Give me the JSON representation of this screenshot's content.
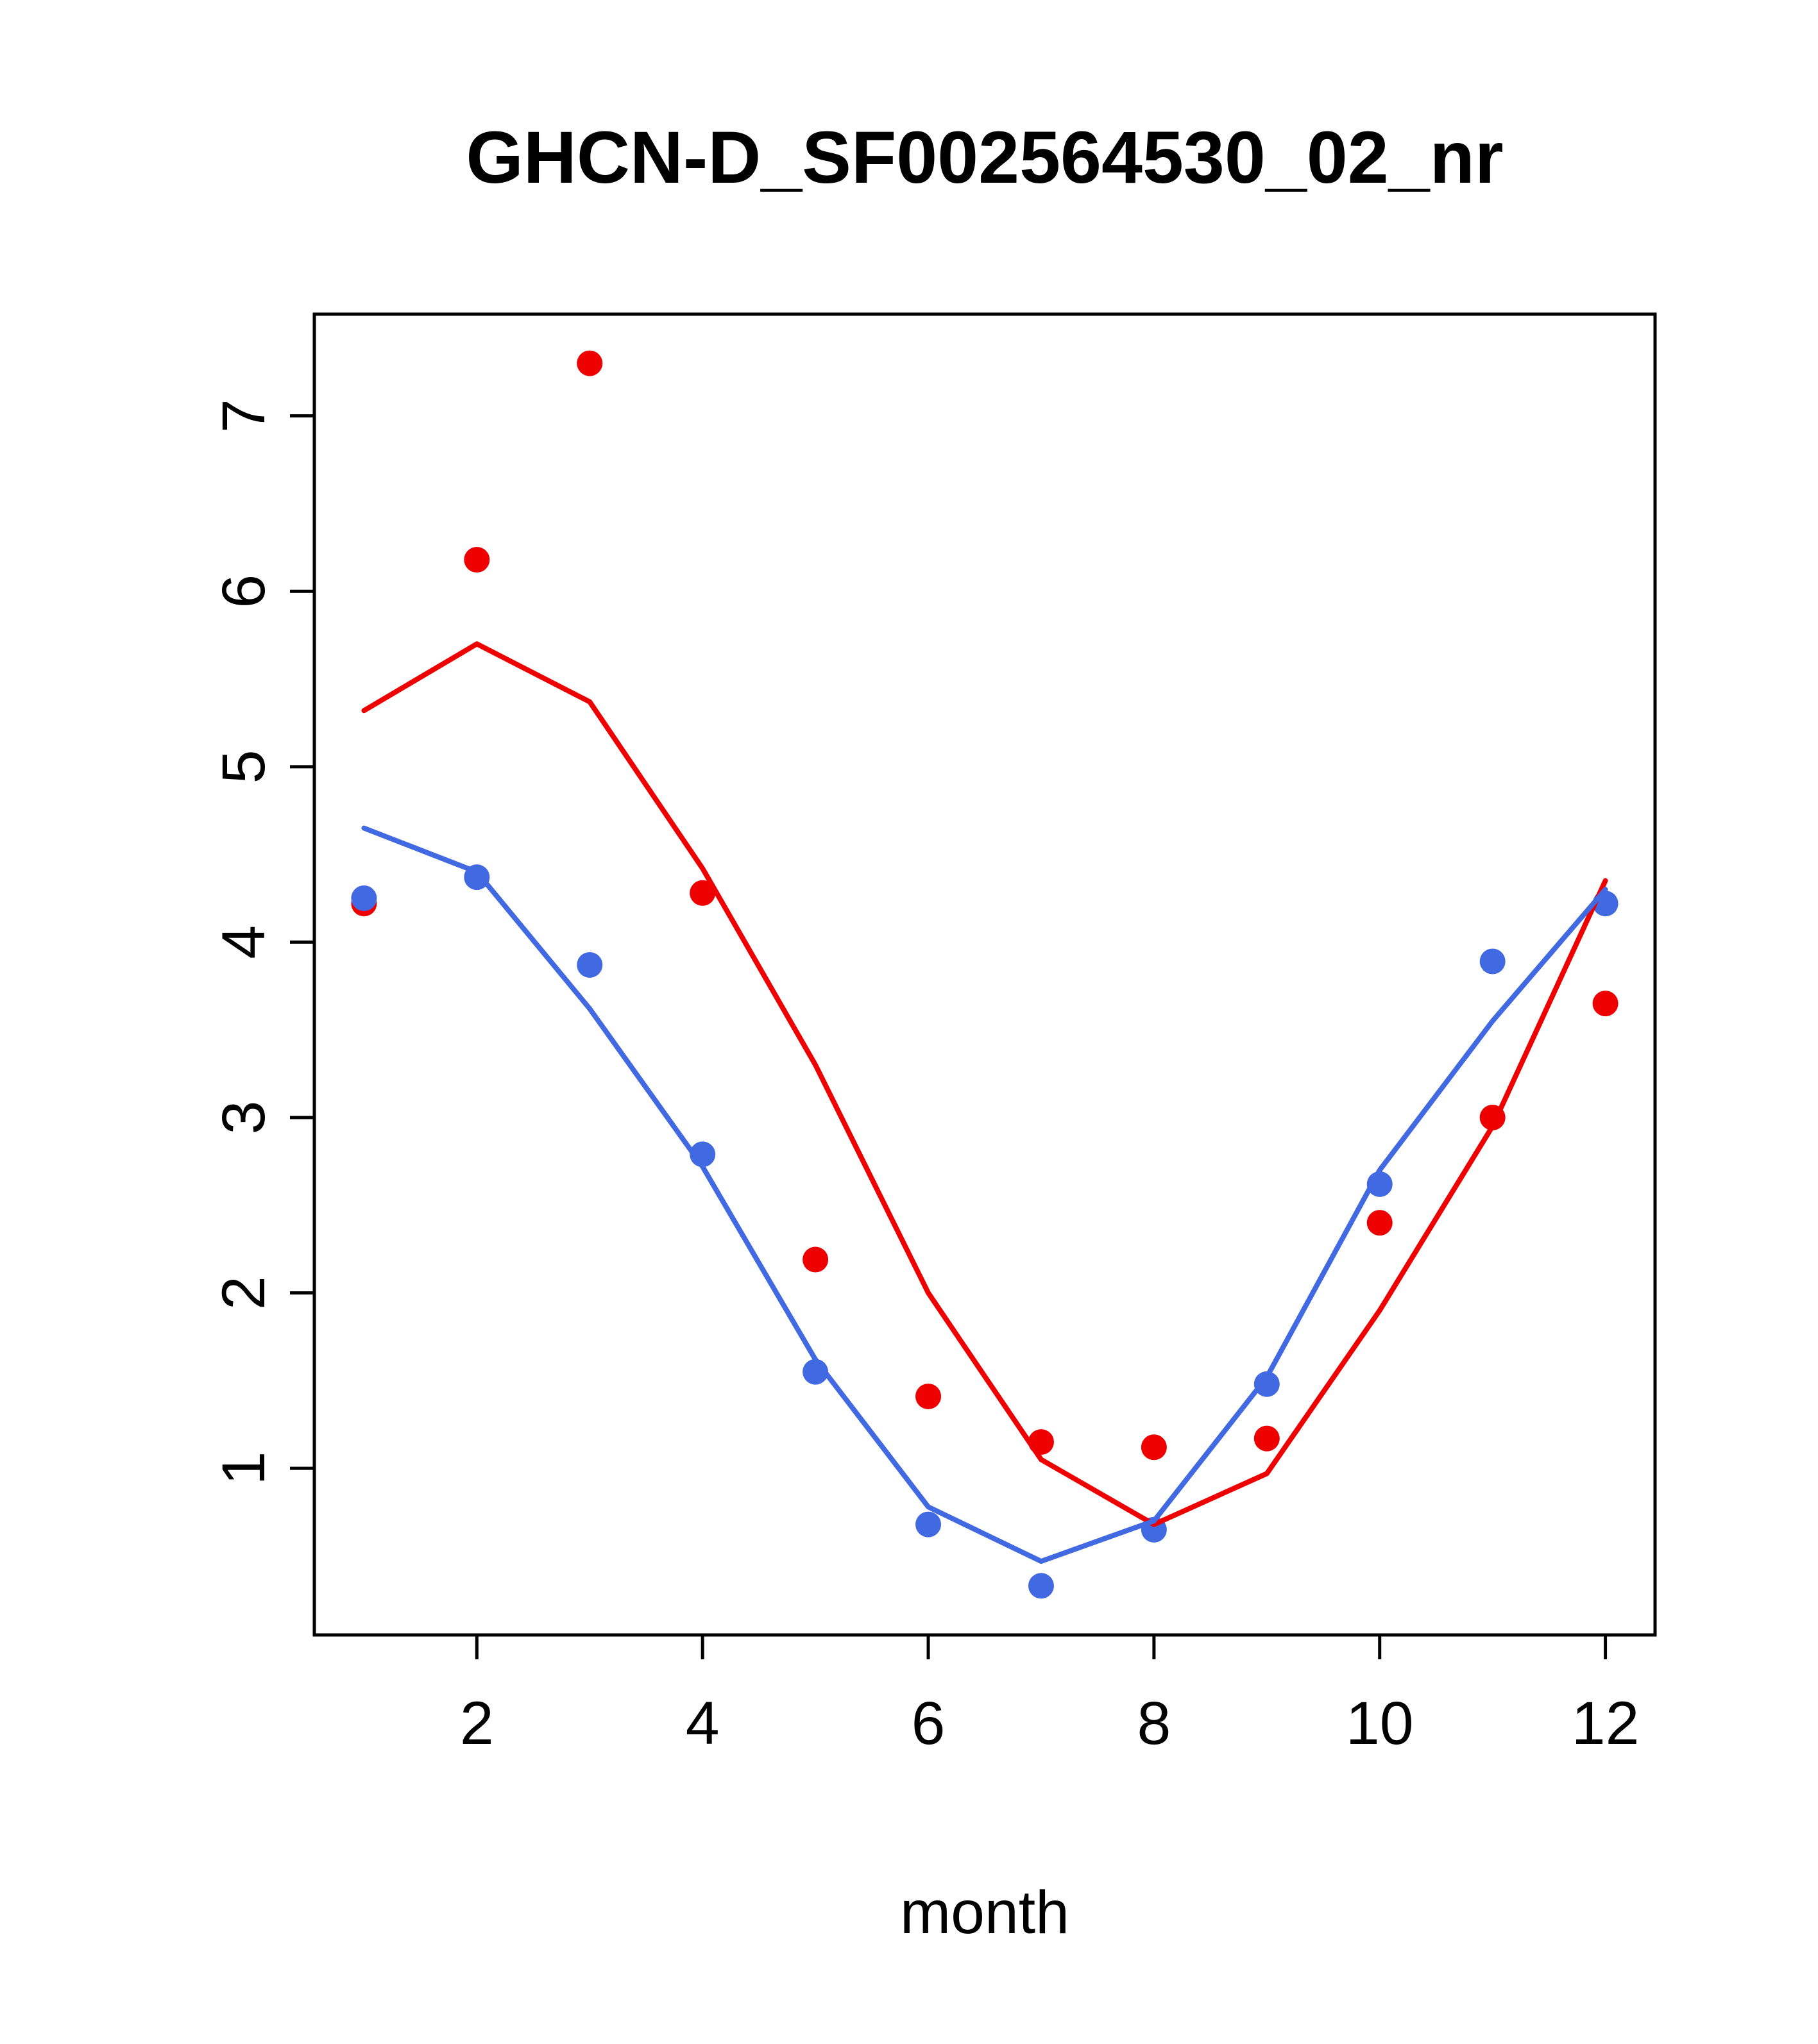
{
  "title": "GHCN-D_SF002564530_02_nr",
  "xlabel": "month",
  "chart_data": {
    "type": "line",
    "title": "GHCN-D_SF002564530_02_nr",
    "xlabel": "month",
    "ylabel": "",
    "x": [
      1,
      2,
      3,
      4,
      5,
      6,
      7,
      8,
      9,
      10,
      11,
      12
    ],
    "x_ticks": [
      2,
      4,
      6,
      8,
      10,
      12
    ],
    "y_ticks": [
      1,
      2,
      3,
      4,
      5,
      6,
      7
    ],
    "xlim": [
      0.56,
      12.44
    ],
    "ylim": [
      0.05,
      7.58
    ],
    "grid": false,
    "legend": "none",
    "colors": {
      "red": "#EE0000",
      "blue": "#4169E1",
      "axis": "#000000",
      "background": "#FFFFFF"
    },
    "series": [
      {
        "name": "red-points",
        "kind": "points",
        "color": "#EE0000",
        "values": [
          4.22,
          6.18,
          7.3,
          4.28,
          2.19,
          1.41,
          1.15,
          1.12,
          1.17,
          2.4,
          3.0,
          3.65
        ]
      },
      {
        "name": "blue-points",
        "kind": "points",
        "color": "#4169E1",
        "values": [
          4.25,
          4.37,
          3.87,
          2.79,
          1.55,
          0.68,
          0.33,
          0.65,
          1.48,
          2.62,
          3.89,
          4.22
        ]
      },
      {
        "name": "red-line",
        "kind": "line",
        "color": "#EE0000",
        "values": [
          5.32,
          5.7,
          5.37,
          4.42,
          3.3,
          2.0,
          1.05,
          0.68,
          0.97,
          1.9,
          2.95,
          4.35
        ]
      },
      {
        "name": "blue-line",
        "kind": "line",
        "color": "#4169E1",
        "values": [
          4.65,
          4.4,
          3.62,
          2.72,
          1.62,
          0.78,
          0.47,
          0.7,
          1.52,
          2.7,
          3.55,
          4.3
        ]
      }
    ]
  }
}
